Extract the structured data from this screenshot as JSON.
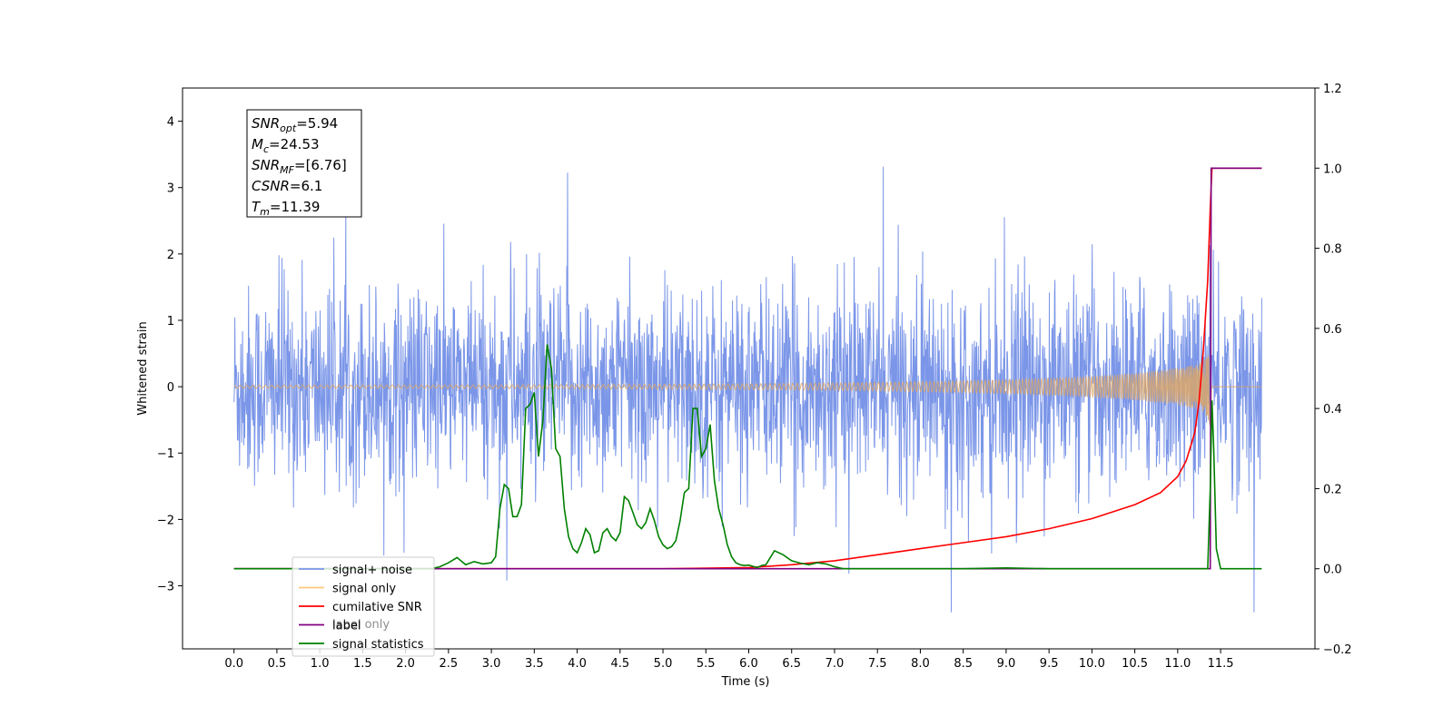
{
  "chart_data": {
    "type": "line",
    "xlabel": "Time (s)",
    "ylabel_left": "Whitened strain",
    "ylabel_right": "",
    "x_ticks": [
      "0.0",
      "0.5",
      "1.0",
      "1.5",
      "2.0",
      "2.5",
      "3.0",
      "3.5",
      "4.0",
      "4.5",
      "5.0",
      "5.5",
      "6.0",
      "6.5",
      "7.0",
      "7.5",
      "8.0",
      "8.5",
      "9.0",
      "9.5",
      "10.0",
      "10.5",
      "11.0",
      "11.5"
    ],
    "xlim": [
      -0.6,
      12.6
    ],
    "ylim_left": [
      -3.95,
      4.5
    ],
    "ylim_right": [
      -0.2,
      1.2
    ],
    "y_ticks_left": [
      -3,
      -2,
      -1,
      0,
      1,
      2,
      3,
      4
    ],
    "y_ticks_right": [
      -0.2,
      0.0,
      0.2,
      0.4,
      0.6,
      0.8,
      1.0,
      1.2
    ],
    "y_ticks_left_labels": [
      "−3",
      "−2",
      "−1",
      "0",
      "1",
      "2",
      "3",
      "4"
    ],
    "y_ticks_right_labels": [
      "−0.2",
      "0.0",
      "0.2",
      "0.4",
      "0.6",
      "0.8",
      "1.0",
      "1.2"
    ],
    "info_box": [
      {
        "base": "SNR",
        "sub": "opt",
        "rest": "=5.94"
      },
      {
        "base": "M",
        "sub": "c",
        "rest": "=24.53"
      },
      {
        "base": "SNR",
        "sub": "MF",
        "rest": "=[6.76]"
      },
      {
        "base": "CSNR",
        "sub": "",
        "rest": "=6.1"
      },
      {
        "base": "T",
        "sub": "m",
        "rest": "=11.39"
      }
    ],
    "legend": {
      "placement": "lower-left",
      "entries": [
        {
          "label": "signal+ noise",
          "color": "#7b96e8"
        },
        {
          "label": "signal only",
          "color": "#ffc87a"
        },
        {
          "label": "cumilative SNR",
          "color": "#ff0000"
        },
        {
          "label": "label",
          "color": "#800080"
        },
        {
          "label": "signal statistics",
          "color": "#008000"
        }
      ],
      "hidden_text": "label only"
    },
    "noise": {
      "x_start": 0.0,
      "x_end": 11.98,
      "amplitude_std": 0.75,
      "color": "#7b96e8"
    },
    "signal_only": {
      "x_start": 0.0,
      "x_end": 11.98,
      "merger_time": 11.39,
      "color": "#d9a66a"
    },
    "series": [
      {
        "name": "cumilative SNR",
        "axis": "right",
        "color": "#ff0000",
        "x": [
          0.0,
          5.0,
          6.0,
          6.5,
          7.0,
          7.5,
          8.0,
          8.5,
          9.0,
          9.5,
          10.0,
          10.5,
          10.8,
          11.0,
          11.1,
          11.2,
          11.25,
          11.3,
          11.35,
          11.38,
          11.4,
          11.98
        ],
        "values": [
          0.0,
          0.0,
          0.003,
          0.01,
          0.02,
          0.035,
          0.05,
          0.065,
          0.08,
          0.1,
          0.125,
          0.16,
          0.19,
          0.23,
          0.27,
          0.34,
          0.42,
          0.55,
          0.72,
          0.9,
          1.0,
          1.0
        ]
      },
      {
        "name": "label",
        "axis": "right",
        "color": "#800080",
        "x": [
          0.0,
          11.3,
          11.38,
          11.39,
          11.4,
          11.98
        ],
        "values": [
          0.0,
          0.0,
          0.0,
          1.0,
          1.0,
          1.0
        ]
      },
      {
        "name": "signal statistics",
        "axis": "right",
        "color": "#008000",
        "x": [
          0.0,
          2.3,
          2.4,
          2.5,
          2.6,
          2.7,
          2.8,
          2.9,
          3.0,
          3.05,
          3.1,
          3.15,
          3.2,
          3.25,
          3.3,
          3.35,
          3.4,
          3.45,
          3.5,
          3.55,
          3.6,
          3.65,
          3.7,
          3.75,
          3.8,
          3.85,
          3.9,
          3.95,
          4.0,
          4.05,
          4.1,
          4.15,
          4.2,
          4.25,
          4.3,
          4.35,
          4.4,
          4.45,
          4.5,
          4.55,
          4.6,
          4.65,
          4.7,
          4.75,
          4.8,
          4.85,
          4.9,
          4.95,
          5.0,
          5.05,
          5.1,
          5.15,
          5.2,
          5.25,
          5.3,
          5.35,
          5.4,
          5.45,
          5.5,
          5.55,
          5.6,
          5.65,
          5.7,
          5.75,
          5.8,
          5.85,
          5.9,
          5.95,
          6.0,
          6.05,
          6.1,
          6.15,
          6.2,
          6.3,
          6.4,
          6.5,
          6.6,
          6.7,
          6.8,
          6.9,
          7.0,
          7.1,
          7.2,
          7.3,
          7.4,
          7.5,
          7.6,
          7.7,
          7.8,
          7.9,
          8.0,
          8.5,
          9.0,
          9.5,
          10.0,
          10.5,
          11.0,
          11.3,
          11.35,
          11.38,
          11.4,
          11.42,
          11.45,
          11.5,
          11.98
        ],
        "values": [
          0.0,
          0.0,
          0.005,
          0.015,
          0.028,
          0.01,
          0.018,
          0.012,
          0.015,
          0.03,
          0.15,
          0.21,
          0.2,
          0.13,
          0.13,
          0.16,
          0.4,
          0.41,
          0.44,
          0.28,
          0.37,
          0.56,
          0.5,
          0.3,
          0.28,
          0.15,
          0.08,
          0.05,
          0.04,
          0.065,
          0.1,
          0.085,
          0.04,
          0.045,
          0.09,
          0.1,
          0.08,
          0.07,
          0.09,
          0.18,
          0.17,
          0.14,
          0.11,
          0.1,
          0.115,
          0.15,
          0.12,
          0.08,
          0.06,
          0.05,
          0.055,
          0.07,
          0.12,
          0.19,
          0.2,
          0.4,
          0.4,
          0.28,
          0.3,
          0.36,
          0.22,
          0.15,
          0.11,
          0.06,
          0.03,
          0.015,
          0.01,
          0.008,
          0.009,
          0.006,
          0.003,
          0.008,
          0.01,
          0.045,
          0.035,
          0.02,
          0.014,
          0.01,
          0.015,
          0.012,
          0.005,
          0.0,
          0.0,
          0.0,
          0.0,
          0.0,
          0.0,
          0.0,
          0.0,
          0.0,
          0.0,
          0.0,
          0.002,
          0.0,
          0.0,
          0.0,
          0.0,
          0.0,
          0.0,
          0.2,
          0.42,
          0.3,
          0.05,
          0.0,
          0.0
        ]
      }
    ]
  }
}
